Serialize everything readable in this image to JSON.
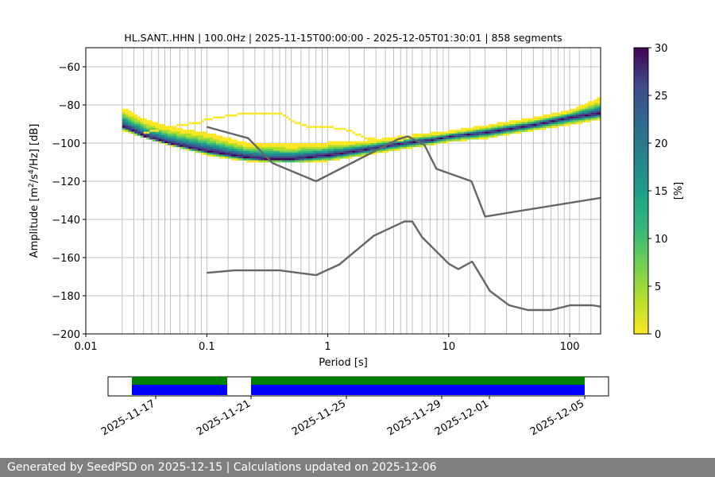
{
  "chart_data": {
    "type": "heatmap",
    "title": "HL.SANT..HHN | 100.0Hz | 2025-11-15T00:00:00 - 2025-12-05T01:30:01 | 858 segments",
    "xlabel": "Period [s]",
    "ylabel_html": "Amplitude [m<tspan baseline-shift=\"super\" font-size=\"9\">2</tspan>/s<tspan baseline-shift=\"super\" font-size=\"9\">4</tspan>/Hz] [dB]",
    "ylabel": "Amplitude [m2/s4/Hz] [dB]",
    "x_scale": "log",
    "xlim": [
      0.01,
      180
    ],
    "ylim": [
      -200,
      -50
    ],
    "x_ticks": [
      0.01,
      0.1,
      1,
      10,
      100
    ],
    "x_tick_labels": [
      "0.01",
      "0.1",
      "1",
      "10",
      "100"
    ],
    "y_ticks": [
      -200,
      -180,
      -160,
      -140,
      -120,
      -100,
      -80,
      -60
    ],
    "y_tick_labels": [
      "−200",
      "−180",
      "−160",
      "−140",
      "−120",
      "−100",
      "−80",
      "−60"
    ],
    "grid": true,
    "colorbar": {
      "label": "[%]",
      "range": [
        0,
        30
      ],
      "ticks": [
        0,
        5,
        10,
        15,
        20,
        25,
        30
      ],
      "tick_labels": [
        "0",
        "5",
        "10",
        "15",
        "20",
        "25",
        "30"
      ],
      "colormap": "viridis_r"
    },
    "psd_mode_curve": {
      "period": [
        0.02,
        0.03,
        0.05,
        0.1,
        0.2,
        0.3,
        0.5,
        1,
        2,
        3,
        5,
        7,
        10,
        20,
        50,
        100,
        180
      ],
      "db": [
        -91,
        -96,
        -100,
        -104,
        -107,
        -108,
        -108,
        -106,
        -103,
        -101,
        -99,
        -98,
        -96,
        -94,
        -90,
        -86,
        -84
      ]
    },
    "psd_spread_db": [
      [
        0.02,
        -82,
        -93
      ],
      [
        0.03,
        -88,
        -97
      ],
      [
        0.05,
        -92,
        -101
      ],
      [
        0.1,
        -95,
        -106
      ],
      [
        0.2,
        -100,
        -109
      ],
      [
        0.5,
        -101,
        -110
      ],
      [
        1,
        -100,
        -109
      ],
      [
        2,
        -99,
        -106
      ],
      [
        5,
        -96,
        -102
      ],
      [
        10,
        -94,
        -99
      ],
      [
        20,
        -91,
        -97
      ],
      [
        50,
        -87,
        -93
      ],
      [
        100,
        -83,
        -90
      ],
      [
        180,
        -76,
        -87
      ]
    ],
    "psd_outlier_contour": {
      "period": [
        0.03,
        0.05,
        0.08,
        0.1,
        0.15,
        0.2,
        0.3,
        0.4,
        0.5,
        0.7,
        1,
        1.5,
        2,
        3,
        4,
        5
      ],
      "db": [
        -94,
        -91,
        -89,
        -87,
        -85,
        -84,
        -84,
        -84,
        -88,
        -91,
        -91,
        -93,
        -97,
        -98,
        -98,
        -96
      ]
    },
    "noise_models": [
      {
        "period": [
          0.1,
          0.22,
          0.35,
          0.8,
          3.8,
          4.6,
          6.3,
          7.9,
          15.4,
          20,
          180
        ],
        "db": [
          -91.5,
          -97.4,
          -110.5,
          -120,
          -98,
          -96.5,
          -101,
          -113.5,
          -120,
          -138.5,
          -128.7
        ]
      },
      {
        "period": [
          0.1,
          0.17,
          0.4,
          0.8,
          1.24,
          2.4,
          4.3,
          5,
          6,
          10,
          12,
          15.6,
          21.9,
          31.6,
          45,
          70,
          101,
          154,
          180
        ],
        "db": [
          -168,
          -166.7,
          -166.7,
          -169.2,
          -163.7,
          -148.6,
          -141.1,
          -141.1,
          -149.2,
          -163.2,
          -166.1,
          -162.1,
          -177.5,
          -185,
          -187.5,
          -187.5,
          -185,
          -185,
          -185.7
        ]
      }
    ],
    "timeline": {
      "ticks": [
        "2025-11-17",
        "2025-11-21",
        "2025-11-25",
        "2025-11-29",
        "2025-12-01",
        "2025-12-05"
      ],
      "range": [
        "2025-11-15",
        "2025-12-06"
      ],
      "data_available": [
        [
          "2025-11-16",
          "2025-11-20"
        ],
        [
          "2025-11-21",
          "2025-12-05"
        ]
      ],
      "psd_computed": [
        [
          "2025-11-16",
          "2025-11-20"
        ],
        [
          "2025-11-21",
          "2025-12-05"
        ]
      ],
      "colors": {
        "data": "#007f00",
        "psd": "#0000ff"
      }
    }
  },
  "footer": {
    "text": "Generated by SeedPSD on 2025-12-15 | Calculations updated on 2025-12-06"
  }
}
